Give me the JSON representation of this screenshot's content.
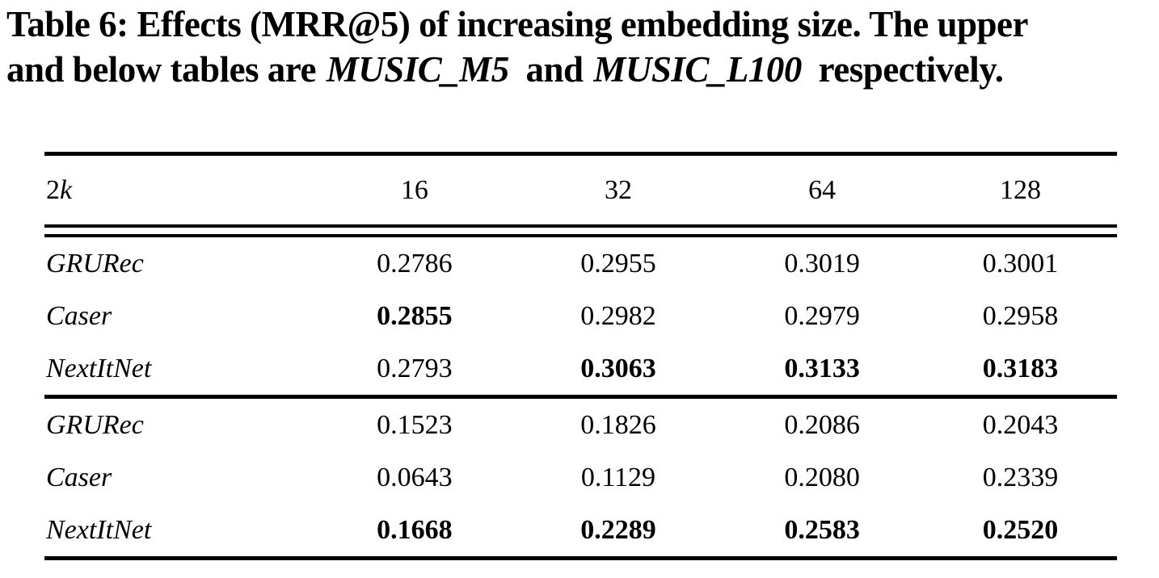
{
  "colors": {
    "background": "#ffffff",
    "text": "#000000",
    "rule": "#000000"
  },
  "caption": {
    "line1": {
      "label": "Table 6:",
      "rest": " Effects (MRR@5) of increasing embedding size. The upper"
    },
    "line2": {
      "pre": "and below tables are",
      "dataset1": "MUSIC_M5",
      "mid": " and",
      "dataset2": "MUSIC_L100",
      "post": " respectively."
    }
  },
  "table": {
    "header": {
      "corner_prefix": "2",
      "corner_symbol": "k",
      "columns": [
        "16",
        "32",
        "64",
        "128"
      ]
    },
    "sections": [
      {
        "name": "MUSIC_M5",
        "rows": [
          {
            "model": "GRURec",
            "values": [
              "0.2786",
              "0.2955",
              "0.3019",
              "0.3001"
            ],
            "bold": [
              false,
              false,
              false,
              false
            ]
          },
          {
            "model": "Caser",
            "values": [
              "0.2855",
              "0.2982",
              "0.2979",
              "0.2958"
            ],
            "bold": [
              true,
              false,
              false,
              false
            ]
          },
          {
            "model": "NextItNet",
            "values": [
              "0.2793",
              "0.3063",
              "0.3133",
              "0.3183"
            ],
            "bold": [
              false,
              true,
              true,
              true
            ]
          }
        ]
      },
      {
        "name": "MUSIC_L100",
        "rows": [
          {
            "model": "GRURec",
            "values": [
              "0.1523",
              "0.1826",
              "0.2086",
              "0.2043"
            ],
            "bold": [
              false,
              false,
              false,
              false
            ]
          },
          {
            "model": "Caser",
            "values": [
              "0.0643",
              "0.1129",
              "0.2080",
              "0.2339"
            ],
            "bold": [
              false,
              false,
              false,
              false
            ]
          },
          {
            "model": "NextItNet",
            "values": [
              "0.1668",
              "0.2289",
              "0.2583",
              "0.2520"
            ],
            "bold": [
              true,
              true,
              true,
              true
            ]
          }
        ]
      }
    ]
  }
}
